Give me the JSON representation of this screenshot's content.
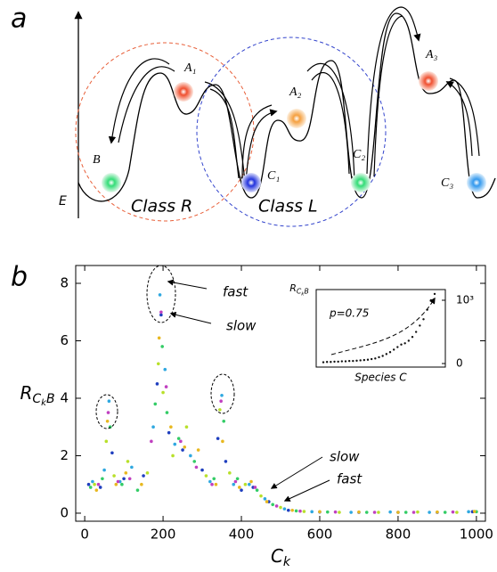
{
  "panel_a": {
    "label": "a",
    "energy_label": "E",
    "class_r": "Class R",
    "class_l": "Class L",
    "states": [
      {
        "label": "B"
      },
      {
        "label": "A₁"
      },
      {
        "label": "C₁"
      },
      {
        "label": "A₂"
      },
      {
        "label": "C₂"
      },
      {
        "label": "A₃"
      },
      {
        "label": "C₃"
      }
    ]
  },
  "panel_b": {
    "label": "b"
  },
  "chart_data": [
    {
      "type": "scatter",
      "x_label": [
        "C",
        "k"
      ],
      "y_label": [
        "R",
        "C",
        "k",
        "B"
      ],
      "xlim": [
        -23,
        1023
      ],
      "ylim": [
        -0.28,
        8.62
      ],
      "xticks": [
        0,
        200,
        400,
        600,
        800,
        1000
      ],
      "yticks": [
        0,
        2,
        4,
        6,
        8
      ],
      "annotations": [
        "fast",
        "slow",
        "slow",
        "fast"
      ],
      "series": [
        {
          "color": "#1f3fbf",
          "x": [
            10,
            40,
            70,
            100,
            150,
            185,
            195,
            215,
            250,
            300,
            340,
            360,
            400,
            430,
            470,
            520,
            600,
            700,
            800,
            900,
            990
          ],
          "values": [
            1.0,
            0.9,
            2.1,
            1.2,
            1.3,
            4.5,
            6.9,
            2.8,
            2.2,
            1.5,
            2.6,
            1.8,
            0.8,
            0.9,
            0.4,
            0.1,
            0.04,
            0.03,
            0.03,
            0.03,
            0.05
          ]
        },
        {
          "color": "#2fa8e0",
          "x": [
            20,
            50,
            62,
            90,
            120,
            175,
            192,
            205,
            230,
            270,
            320,
            350,
            380,
            420,
            460,
            510,
            580,
            680,
            780,
            880,
            980
          ],
          "values": [
            1.1,
            1.5,
            3.9,
            1.1,
            1.6,
            3.0,
            7.6,
            5.0,
            2.4,
            2.0,
            1.1,
            4.1,
            1.0,
            1.0,
            0.5,
            0.15,
            0.05,
            0.03,
            0.04,
            0.03,
            0.05
          ]
        },
        {
          "color": "#33cc66",
          "x": [
            15,
            45,
            65,
            95,
            135,
            180,
            198,
            210,
            240,
            280,
            330,
            355,
            390,
            440,
            480,
            540,
            620,
            720,
            820,
            920,
            1000
          ],
          "values": [
            0.9,
            1.2,
            3.0,
            1.0,
            0.8,
            3.8,
            5.8,
            3.5,
            2.6,
            1.8,
            1.2,
            3.2,
            1.2,
            0.8,
            0.3,
            0.08,
            0.04,
            0.03,
            0.03,
            0.03,
            0.05
          ]
        },
        {
          "color": "#b8e02a",
          "x": [
            25,
            55,
            75,
            110,
            160,
            188,
            200,
            225,
            260,
            310,
            345,
            370,
            410,
            450,
            500,
            560,
            650,
            750,
            850,
            950
          ],
          "values": [
            1.0,
            2.5,
            1.3,
            1.8,
            1.4,
            5.2,
            4.2,
            2.0,
            3.0,
            1.3,
            3.6,
            1.4,
            1.0,
            0.6,
            0.2,
            0.06,
            0.03,
            0.03,
            0.04,
            0.03
          ]
        },
        {
          "color": "#e8b820",
          "x": [
            30,
            58,
            80,
            105,
            145,
            190,
            220,
            255,
            290,
            335,
            352,
            395,
            425,
            465,
            530,
            600,
            700,
            800,
            900,
            995
          ],
          "values": [
            0.8,
            3.2,
            1.0,
            1.4,
            1.0,
            6.1,
            3.0,
            2.3,
            2.2,
            1.0,
            2.5,
            0.9,
            1.1,
            0.4,
            0.1,
            0.05,
            0.04,
            0.03,
            0.04,
            0.06
          ]
        },
        {
          "color": "#c040c0",
          "x": [
            35,
            60,
            85,
            115,
            170,
            195,
            208,
            245,
            285,
            325,
            348,
            385,
            435,
            490,
            550,
            640,
            740,
            840,
            940
          ],
          "values": [
            1.0,
            3.5,
            1.1,
            1.2,
            2.5,
            7.0,
            4.4,
            2.5,
            1.6,
            1.0,
            3.9,
            1.1,
            0.9,
            0.25,
            0.07,
            0.04,
            0.03,
            0.03,
            0.04
          ]
        }
      ]
    },
    {
      "type": "scatter",
      "title": "p=0.75",
      "x_label": "Species C",
      "y_label": [
        "R",
        "C",
        "k",
        "B"
      ],
      "ylim": [
        -56,
        1169
      ],
      "yticks": [
        0,
        {
          "value": 1000,
          "label": "10³"
        }
      ],
      "color": "#111111",
      "values": [
        20,
        25,
        25,
        30,
        30,
        35,
        35,
        40,
        40,
        45,
        50,
        55,
        60,
        70,
        80,
        100,
        120,
        150,
        180,
        220,
        260,
        300,
        320,
        360,
        420,
        500,
        600,
        700,
        850,
        1000,
        1100
      ]
    }
  ]
}
